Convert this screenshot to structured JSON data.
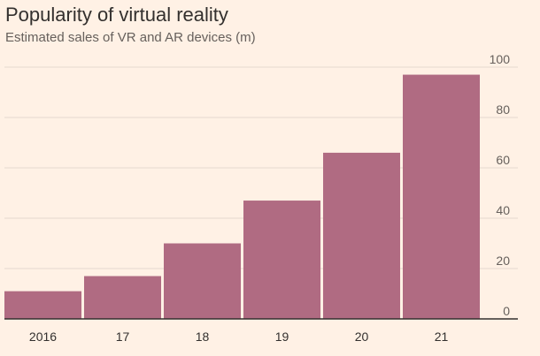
{
  "chart_data": {
    "type": "bar",
    "title": "Popularity of virtual reality",
    "subtitle": "Estimated sales of VR and AR devices (m)",
    "categories": [
      "2016",
      "17",
      "18",
      "19",
      "20",
      "21"
    ],
    "values": [
      11,
      17,
      30,
      47,
      66,
      97
    ],
    "ylim": [
      0,
      100
    ],
    "yticks": [
      0,
      20,
      40,
      60,
      80,
      100
    ],
    "grid": true,
    "bar_color": "#b06b82",
    "grid_color": "#e6d9ce",
    "baseline_color": "#33302e"
  }
}
